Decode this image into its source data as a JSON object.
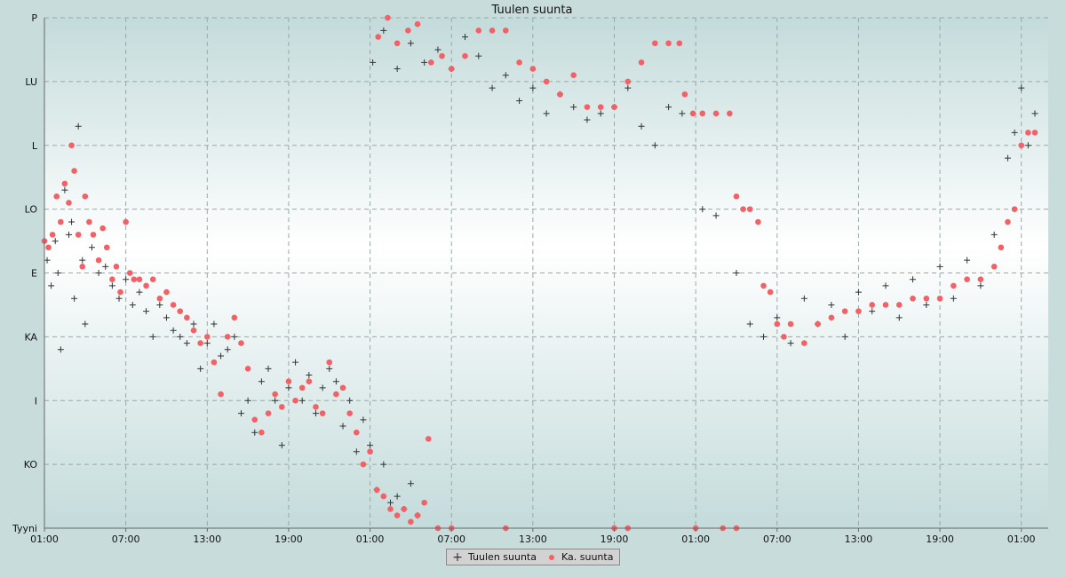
{
  "chart_data": {
    "type": "scatter",
    "title": "Tuulen suunta",
    "xlabel": "",
    "ylabel": "",
    "x_tick_labels": [
      "01:00",
      "07:00",
      "13:00",
      "19:00",
      "01:00",
      "07:00",
      "13:00",
      "19:00",
      "01:00",
      "07:00",
      "13:00",
      "19:00",
      "01:00"
    ],
    "y_tick_labels": [
      "Tyyni",
      "KO",
      "I",
      "KA",
      "E",
      "LO",
      "L",
      "LU",
      "P"
    ],
    "x_range_hours": [
      0,
      73
    ],
    "y_range_levels": [
      0,
      8
    ],
    "grid": true,
    "legend_position": "bottom-center",
    "series": [
      {
        "name": "Tuulen suunta",
        "marker": "plus",
        "color": "#333333",
        "points": [
          [
            0.2,
            4.2
          ],
          [
            0.5,
            3.8
          ],
          [
            0.8,
            4.5
          ],
          [
            1.0,
            4.0
          ],
          [
            1.2,
            2.8
          ],
          [
            1.5,
            5.3
          ],
          [
            1.8,
            4.6
          ],
          [
            2.0,
            4.8
          ],
          [
            2.2,
            3.6
          ],
          [
            2.5,
            6.3
          ],
          [
            2.8,
            4.2
          ],
          [
            3.0,
            3.2
          ],
          [
            3.5,
            4.4
          ],
          [
            4.0,
            4.0
          ],
          [
            4.5,
            4.1
          ],
          [
            5.0,
            3.8
          ],
          [
            5.5,
            3.6
          ],
          [
            6.0,
            3.9
          ],
          [
            6.5,
            3.5
          ],
          [
            7.0,
            3.7
          ],
          [
            7.5,
            3.4
          ],
          [
            8.0,
            3.0
          ],
          [
            8.5,
            3.5
          ],
          [
            9.0,
            3.3
          ],
          [
            9.5,
            3.1
          ],
          [
            10.0,
            3.0
          ],
          [
            10.5,
            2.9
          ],
          [
            11.0,
            3.2
          ],
          [
            11.5,
            2.5
          ],
          [
            12.0,
            2.9
          ],
          [
            12.5,
            3.2
          ],
          [
            13.0,
            2.7
          ],
          [
            13.5,
            2.8
          ],
          [
            14.0,
            3.0
          ],
          [
            14.5,
            1.8
          ],
          [
            15.0,
            2.0
          ],
          [
            15.5,
            1.5
          ],
          [
            16.0,
            2.3
          ],
          [
            16.5,
            2.5
          ],
          [
            17.0,
            2.0
          ],
          [
            17.5,
            1.3
          ],
          [
            18.0,
            2.2
          ],
          [
            18.5,
            2.6
          ],
          [
            19.0,
            2.0
          ],
          [
            19.5,
            2.4
          ],
          [
            20.0,
            1.8
          ],
          [
            20.5,
            2.2
          ],
          [
            21.0,
            2.5
          ],
          [
            21.5,
            2.3
          ],
          [
            22.0,
            1.6
          ],
          [
            22.5,
            2.0
          ],
          [
            23.0,
            1.2
          ],
          [
            23.5,
            1.7
          ],
          [
            24.0,
            1.3
          ],
          [
            24.5,
            0.6
          ],
          [
            25.0,
            1.0
          ],
          [
            25.5,
            0.4
          ],
          [
            26.0,
            0.5
          ],
          [
            26.5,
            0.3
          ],
          [
            27.0,
            0.7
          ],
          [
            27.5,
            0.2
          ],
          [
            24.2,
            7.3
          ],
          [
            25.0,
            7.8
          ],
          [
            26.0,
            7.2
          ],
          [
            27.0,
            7.6
          ],
          [
            28.0,
            7.3
          ],
          [
            29.0,
            7.5
          ],
          [
            30.0,
            7.2
          ],
          [
            31.0,
            7.7
          ],
          [
            32.0,
            7.4
          ],
          [
            33.0,
            6.9
          ],
          [
            34.0,
            7.1
          ],
          [
            35.0,
            6.7
          ],
          [
            36.0,
            6.9
          ],
          [
            37.0,
            6.5
          ],
          [
            38.0,
            6.8
          ],
          [
            39.0,
            6.6
          ],
          [
            40.0,
            6.4
          ],
          [
            41.0,
            6.5
          ],
          [
            42.0,
            6.6
          ],
          [
            43.0,
            6.9
          ],
          [
            44.0,
            6.3
          ],
          [
            45.0,
            6.0
          ],
          [
            46.0,
            6.6
          ],
          [
            47.0,
            6.5
          ],
          [
            48.5,
            5.0
          ],
          [
            49.5,
            4.9
          ],
          [
            51.0,
            4.0
          ],
          [
            52.0,
            3.2
          ],
          [
            53.0,
            3.0
          ],
          [
            54.0,
            3.3
          ],
          [
            55.0,
            2.9
          ],
          [
            56.0,
            3.6
          ],
          [
            57.0,
            3.2
          ],
          [
            58.0,
            3.5
          ],
          [
            59.0,
            3.0
          ],
          [
            60.0,
            3.7
          ],
          [
            61.0,
            3.4
          ],
          [
            62.0,
            3.8
          ],
          [
            63.0,
            3.3
          ],
          [
            64.0,
            3.9
          ],
          [
            65.0,
            3.5
          ],
          [
            66.0,
            4.1
          ],
          [
            67.0,
            3.6
          ],
          [
            68.0,
            4.2
          ],
          [
            69.0,
            3.8
          ],
          [
            70.0,
            4.6
          ],
          [
            71.0,
            5.8
          ],
          [
            71.5,
            6.2
          ],
          [
            72.0,
            6.9
          ],
          [
            72.5,
            6.0
          ],
          [
            73.0,
            6.5
          ]
        ]
      },
      {
        "name": "Ka. suunta",
        "marker": "dot",
        "color": "#f26166",
        "points": [
          [
            0.0,
            4.5
          ],
          [
            0.3,
            4.4
          ],
          [
            0.6,
            4.6
          ],
          [
            0.9,
            5.2
          ],
          [
            1.2,
            4.8
          ],
          [
            1.5,
            5.4
          ],
          [
            1.8,
            5.1
          ],
          [
            2.0,
            6.0
          ],
          [
            2.2,
            5.6
          ],
          [
            2.5,
            4.6
          ],
          [
            2.8,
            4.1
          ],
          [
            3.0,
            5.2
          ],
          [
            3.3,
            4.8
          ],
          [
            3.6,
            4.6
          ],
          [
            4.0,
            4.2
          ],
          [
            4.3,
            4.7
          ],
          [
            4.6,
            4.4
          ],
          [
            5.0,
            3.9
          ],
          [
            5.3,
            4.1
          ],
          [
            5.6,
            3.7
          ],
          [
            6.0,
            4.8
          ],
          [
            6.3,
            4.0
          ],
          [
            6.6,
            3.9
          ],
          [
            7.0,
            3.9
          ],
          [
            7.5,
            3.8
          ],
          [
            8.0,
            3.9
          ],
          [
            8.5,
            3.6
          ],
          [
            9.0,
            3.7
          ],
          [
            9.5,
            3.5
          ],
          [
            10.0,
            3.4
          ],
          [
            10.5,
            3.3
          ],
          [
            11.0,
            3.1
          ],
          [
            11.5,
            2.9
          ],
          [
            12.0,
            3.0
          ],
          [
            12.5,
            2.6
          ],
          [
            13.0,
            2.1
          ],
          [
            13.5,
            3.0
          ],
          [
            14.0,
            3.3
          ],
          [
            14.5,
            2.9
          ],
          [
            15.0,
            2.5
          ],
          [
            15.5,
            1.7
          ],
          [
            16.0,
            1.5
          ],
          [
            16.5,
            1.8
          ],
          [
            17.0,
            2.1
          ],
          [
            17.5,
            1.9
          ],
          [
            18.0,
            2.3
          ],
          [
            18.5,
            2.0
          ],
          [
            19.0,
            2.2
          ],
          [
            19.5,
            2.3
          ],
          [
            20.0,
            1.9
          ],
          [
            20.5,
            1.8
          ],
          [
            21.0,
            2.6
          ],
          [
            21.5,
            2.1
          ],
          [
            22.0,
            2.2
          ],
          [
            22.5,
            1.8
          ],
          [
            23.0,
            1.5
          ],
          [
            23.5,
            1.0
          ],
          [
            24.0,
            1.2
          ],
          [
            24.5,
            0.6
          ],
          [
            25.0,
            0.5
          ],
          [
            25.5,
            0.3
          ],
          [
            26.0,
            0.2
          ],
          [
            26.5,
            0.3
          ],
          [
            27.0,
            0.1
          ],
          [
            27.5,
            0.2
          ],
          [
            28.0,
            0.4
          ],
          [
            28.3,
            1.4
          ],
          [
            29.0,
            0.0
          ],
          [
            30.0,
            0.0
          ],
          [
            34.0,
            0.0
          ],
          [
            42.0,
            0.0
          ],
          [
            43.0,
            0.0
          ],
          [
            48.0,
            0.0
          ],
          [
            50.0,
            0.0
          ],
          [
            51.0,
            0.0
          ],
          [
            24.6,
            7.7
          ],
          [
            25.3,
            8.0
          ],
          [
            26.0,
            7.6
          ],
          [
            26.8,
            7.8
          ],
          [
            27.5,
            7.9
          ],
          [
            28.5,
            7.3
          ],
          [
            29.3,
            7.4
          ],
          [
            30.0,
            7.2
          ],
          [
            31.0,
            7.4
          ],
          [
            32.0,
            7.8
          ],
          [
            33.0,
            7.8
          ],
          [
            34.0,
            7.8
          ],
          [
            35.0,
            7.3
          ],
          [
            36.0,
            7.2
          ],
          [
            37.0,
            7.0
          ],
          [
            38.0,
            6.8
          ],
          [
            39.0,
            7.1
          ],
          [
            40.0,
            6.6
          ],
          [
            41.0,
            6.6
          ],
          [
            42.0,
            6.6
          ],
          [
            43.0,
            7.0
          ],
          [
            44.0,
            7.3
          ],
          [
            45.0,
            7.6
          ],
          [
            46.0,
            7.6
          ],
          [
            46.8,
            7.6
          ],
          [
            47.2,
            6.8
          ],
          [
            47.8,
            6.5
          ],
          [
            48.5,
            6.5
          ],
          [
            49.5,
            6.5
          ],
          [
            50.5,
            6.5
          ],
          [
            51.0,
            5.2
          ],
          [
            51.5,
            5.0
          ],
          [
            52.0,
            5.0
          ],
          [
            52.6,
            4.8
          ],
          [
            53.0,
            3.8
          ],
          [
            53.5,
            3.7
          ],
          [
            54.0,
            3.2
          ],
          [
            54.5,
            3.0
          ],
          [
            55.0,
            3.2
          ],
          [
            56.0,
            2.9
          ],
          [
            57.0,
            3.2
          ],
          [
            58.0,
            3.3
          ],
          [
            59.0,
            3.4
          ],
          [
            60.0,
            3.4
          ],
          [
            61.0,
            3.5
          ],
          [
            62.0,
            3.5
          ],
          [
            63.0,
            3.5
          ],
          [
            64.0,
            3.6
          ],
          [
            65.0,
            3.6
          ],
          [
            66.0,
            3.6
          ],
          [
            67.0,
            3.8
          ],
          [
            68.0,
            3.9
          ],
          [
            69.0,
            3.9
          ],
          [
            70.0,
            4.1
          ],
          [
            70.5,
            4.4
          ],
          [
            71.0,
            4.8
          ],
          [
            71.5,
            5.0
          ],
          [
            72.0,
            6.0
          ],
          [
            72.5,
            6.2
          ],
          [
            73.0,
            6.2
          ]
        ]
      }
    ]
  }
}
